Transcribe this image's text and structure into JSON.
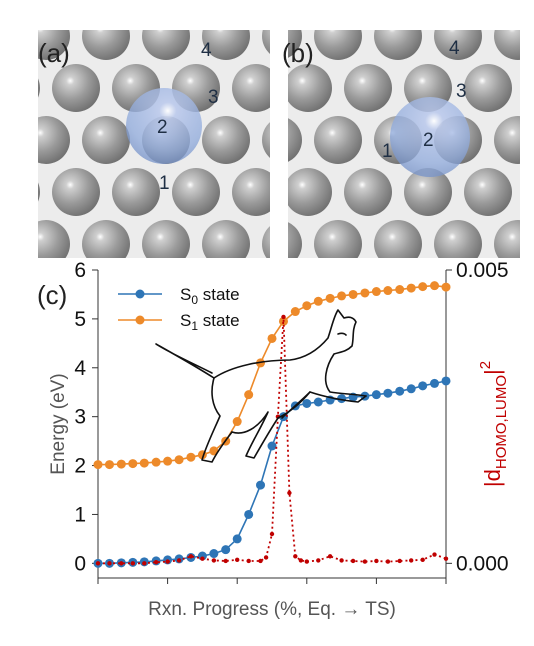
{
  "panels": {
    "a": {
      "label": "(a)",
      "atom_labels": [
        "4",
        "3",
        "2",
        "1"
      ]
    },
    "b": {
      "label": "(b)",
      "atom_labels": [
        "4",
        "3",
        "1",
        "2"
      ]
    },
    "c": {
      "label": "(c)"
    }
  },
  "colors": {
    "s0": "#2e75b6",
    "s1": "#ed8a2a",
    "density": "#c00000",
    "atom_gray": "#8c8c8c",
    "atom_blue": "#8faadc"
  },
  "chart_data": {
    "type": "line",
    "xlabel": "Rxn. Progress (%, Eq. → TS)",
    "ylabel": "Energy (eV)",
    "ylim": [
      -0.3,
      6.0
    ],
    "yticks": [
      "0",
      "1",
      "2",
      "3",
      "4",
      "5",
      "6"
    ],
    "y2label_main": "|d",
    "y2label_sub": "HOMO,LUMO",
    "y2label_tail": "|",
    "y2label_sup": "2",
    "y2lim": [
      -0.00025,
      0.005
    ],
    "y2ticks": [
      "0.000",
      "0.005"
    ],
    "xlim": [
      0,
      100
    ],
    "legend_position": "top-left",
    "series": [
      {
        "name_main": "S",
        "name_sub": "0",
        "name_tail": " state",
        "axis": "left",
        "x": [
          0,
          3.3,
          6.7,
          10,
          13.3,
          16.7,
          20,
          23.3,
          26.7,
          30,
          33.3,
          36.7,
          40,
          43.3,
          46.7,
          50,
          53.3,
          56.7,
          60,
          63.3,
          66.7,
          70,
          73.3,
          76.7,
          80,
          83.3,
          86.7,
          90,
          93.3,
          96.7,
          100
        ],
        "values": [
          0,
          0,
          0.01,
          0.02,
          0.03,
          0.05,
          0.07,
          0.09,
          0.12,
          0.15,
          0.2,
          0.28,
          0.5,
          1.0,
          1.6,
          2.4,
          3.0,
          3.22,
          3.27,
          3.3,
          3.34,
          3.37,
          3.4,
          3.42,
          3.45,
          3.48,
          3.52,
          3.57,
          3.63,
          3.68,
          3.73
        ]
      },
      {
        "name_main": "S",
        "name_sub": "1",
        "name_tail": " state",
        "axis": "left",
        "x": [
          0,
          3.3,
          6.7,
          10,
          13.3,
          16.7,
          20,
          23.3,
          26.7,
          30,
          33.3,
          36.7,
          40,
          43.3,
          46.7,
          50,
          53.3,
          56.7,
          60,
          63.3,
          66.7,
          70,
          73.3,
          76.7,
          80,
          83.3,
          86.7,
          90,
          93.3,
          96.7,
          100
        ],
        "values": [
          2.02,
          2.02,
          2.03,
          2.04,
          2.05,
          2.07,
          2.09,
          2.12,
          2.17,
          2.22,
          2.3,
          2.5,
          2.9,
          3.45,
          4.1,
          4.6,
          4.95,
          5.15,
          5.27,
          5.36,
          5.42,
          5.47,
          5.5,
          5.53,
          5.56,
          5.58,
          5.6,
          5.63,
          5.66,
          5.68,
          5.65
        ]
      },
      {
        "name": "",
        "axis": "right",
        "style": "dotted",
        "x": [
          0,
          3.3,
          6.7,
          10,
          13.3,
          16.7,
          20,
          23.3,
          26.7,
          30,
          33.3,
          36.7,
          40,
          43.3,
          46.7,
          48.3,
          50,
          51.7,
          53.3,
          55,
          56.7,
          58.3,
          60,
          63.3,
          66.7,
          70,
          73.3,
          76.7,
          80,
          83.3,
          86.7,
          90,
          93.3,
          96.7,
          100
        ],
        "values": [
          0.0,
          0.0,
          0.0,
          0.0,
          0.0,
          2e-05,
          3e-05,
          5e-05,
          0.00012,
          8e-05,
          5e-05,
          4e-05,
          6e-05,
          4e-05,
          4e-05,
          0.0001,
          0.0005,
          0.0025,
          0.0042,
          0.0012,
          0.00012,
          5e-05,
          3e-05,
          5e-05,
          0.00012,
          5e-05,
          4e-05,
          3e-05,
          4e-05,
          3e-05,
          4e-05,
          5e-05,
          6e-05,
          0.00015,
          8e-05
        ]
      }
    ]
  }
}
